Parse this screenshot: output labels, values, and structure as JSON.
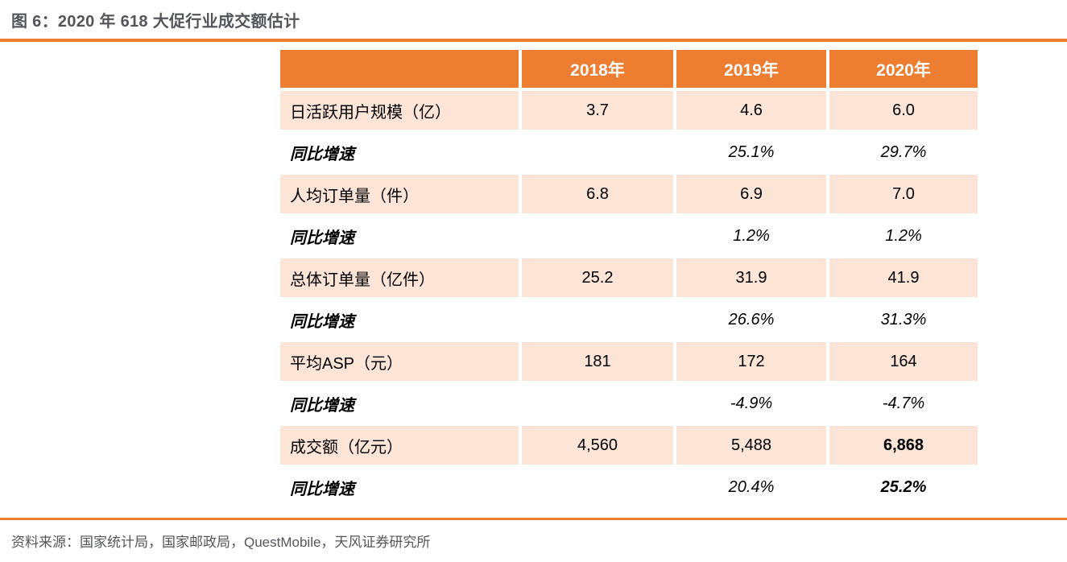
{
  "title": "图 6：2020 年 618 大促行业成交额估计",
  "source": "资料来源：国家统计局，国家邮政局，QuestMobile，天风证券研究所",
  "colors": {
    "accent": "#ED7D31",
    "row_fill": "#FCE4D6",
    "text_gray": "#54555A"
  },
  "chart_data": {
    "type": "table",
    "columns": [
      "2018年",
      "2019年",
      "2020年"
    ],
    "rows": [
      {
        "label": "日活跃用户规模（亿）",
        "kind": "metric",
        "values": [
          "3.7",
          "4.6",
          "6.0"
        ]
      },
      {
        "label": "同比增速",
        "kind": "growth",
        "values": [
          "",
          "25.1%",
          "29.7%"
        ]
      },
      {
        "label": "人均订单量（件）",
        "kind": "metric",
        "values": [
          "6.8",
          "6.9",
          "7.0"
        ]
      },
      {
        "label": "同比增速",
        "kind": "growth",
        "values": [
          "",
          "1.2%",
          "1.2%"
        ]
      },
      {
        "label": "总体订单量（亿件）",
        "kind": "metric",
        "values": [
          "25.2",
          "31.9",
          "41.9"
        ]
      },
      {
        "label": "同比增速",
        "kind": "growth",
        "values": [
          "",
          "26.6%",
          "31.3%"
        ]
      },
      {
        "label": "平均ASP（元）",
        "kind": "metric",
        "values": [
          "181",
          "172",
          "164"
        ]
      },
      {
        "label": "同比增速",
        "kind": "growth",
        "values": [
          "",
          "-4.9%",
          "-4.7%"
        ]
      },
      {
        "label": "成交额（亿元）",
        "kind": "metric",
        "values": [
          "4,560",
          "5,488",
          "6,868"
        ],
        "bold_col": 2
      },
      {
        "label": "同比增速",
        "kind": "growth",
        "values": [
          "",
          "20.4%",
          "25.2%"
        ],
        "bold_col": 2
      }
    ]
  }
}
